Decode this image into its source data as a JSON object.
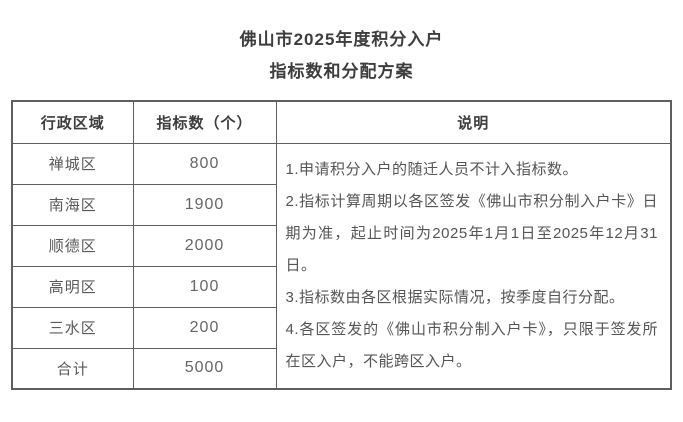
{
  "page": {
    "title_line1": "佛山市2025年度积分入户",
    "title_line2": "指标数和分配方案"
  },
  "table": {
    "headers": {
      "region": "行政区域",
      "quota": "指标数（个）",
      "notes": "说明"
    },
    "rows": [
      {
        "region": "禅城区",
        "quota": "800"
      },
      {
        "region": "南海区",
        "quota": "1900"
      },
      {
        "region": "顺德区",
        "quota": "2000"
      },
      {
        "region": "高明区",
        "quota": "100"
      },
      {
        "region": "三水区",
        "quota": "200"
      },
      {
        "region": "合计",
        "quota": "5000"
      }
    ],
    "notes": [
      "1.申请积分入户的随迁人员不计入指标数。",
      "2.指标计算周期以各区签发《佛山市积分制入户卡》日期为准，起止时间为2025年1月1日至2025年12月31日。",
      "3.指标数由各区根据实际情况，按季度自行分配。",
      "4.各区签发的《佛山市积分制入户卡》，只限于签发所在区入户，不能跨区入户。"
    ]
  },
  "colors": {
    "border": "#5f5f5f",
    "heading_text": "#3d3d3d",
    "body_text": "#595959",
    "background": "#ffffff"
  }
}
